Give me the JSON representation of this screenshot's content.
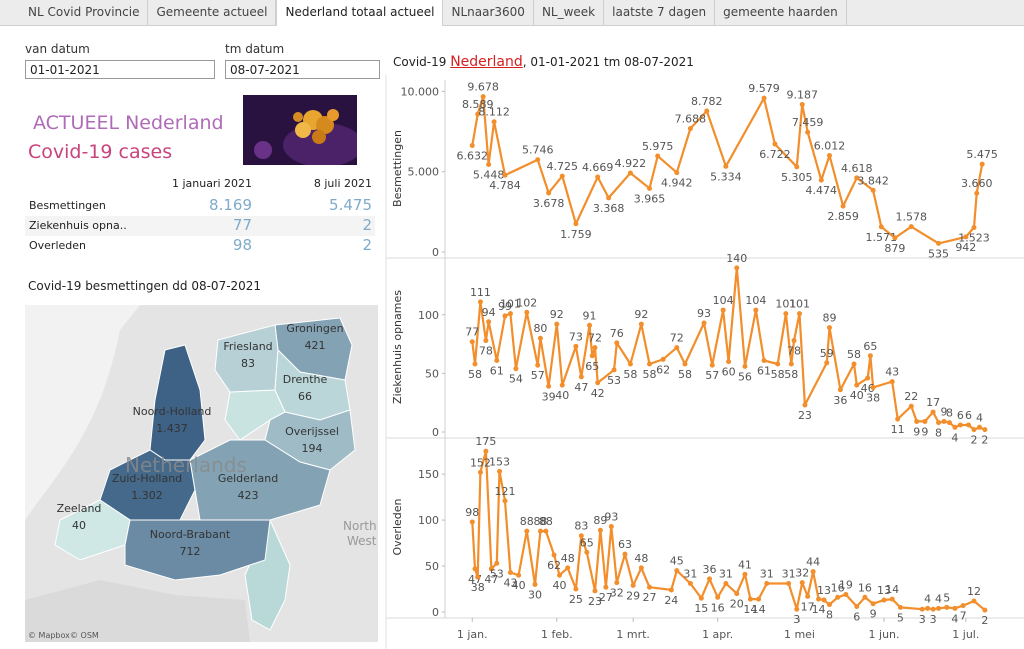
{
  "tabs": [
    "NL Covid Provincie",
    "Gemeente actueel",
    "Nederland totaal actueel",
    "NLnaar3600",
    "NL_week",
    "laatste 7 dagen",
    "gemeente haarden"
  ],
  "active_tab": "Nederland totaal actueel",
  "filters": [
    {
      "label": "van datum",
      "value": "01-01-2021"
    },
    {
      "label": "tm datum",
      "value": "08-07-2021"
    }
  ],
  "headline": [
    "ACTUEEL Nederland",
    "Covid-19 cases"
  ],
  "summary": {
    "columns": [
      "1 januari 2021",
      "8 juli 2021"
    ],
    "rows": [
      {
        "label": "Besmettingen",
        "values": [
          "8.169",
          "5.475"
        ]
      },
      {
        "label": "Ziekenhuis opna..",
        "values": [
          "77",
          "2"
        ]
      },
      {
        "label": "Overleden",
        "values": [
          "98",
          "2"
        ]
      }
    ]
  },
  "map": {
    "title": "Covid-19 besmettingen dd 08-07-2021",
    "regions": [
      {
        "name": "Groningen",
        "value": 421,
        "value_label": "421"
      },
      {
        "name": "Friesland",
        "value": 83,
        "value_label": "83"
      },
      {
        "name": "Drenthe",
        "value": 66,
        "value_label": "66"
      },
      {
        "name": "Noord-Holland",
        "value": 1437,
        "value_label": "1.437"
      },
      {
        "name": "Overijssel",
        "value": 194,
        "value_label": "194"
      },
      {
        "name": "Zuid-Holland",
        "value": 1302,
        "value_label": "1.302"
      },
      {
        "name": "Gelderland",
        "value": 423,
        "value_label": "423"
      },
      {
        "name": "Zeeland",
        "value": 40,
        "value_label": "40"
      },
      {
        "name": "Noord-Brabant",
        "value": 712,
        "value_label": "712"
      }
    ],
    "background_labels": [
      "Netherlands",
      "North",
      "West"
    ],
    "attribution": [
      "© Mapbox",
      "© OSM"
    ]
  },
  "charts_header": {
    "prefix": "Covid-19 ",
    "link": "Nederland",
    "suffix": ", 01-01-2021 tm 08-07-2021"
  },
  "chart_data": [
    {
      "type": "line",
      "y_label": "Besmettingen",
      "color": "#f28e2b",
      "xlim": [
        -10,
        195
      ],
      "ylim": [
        0,
        10400
      ],
      "yticks": [
        0,
        {
          "value": 5000,
          "label": "5.000"
        },
        {
          "value": 10000,
          "label": "10.000"
        }
      ],
      "x": [
        0,
        2,
        4,
        6,
        8,
        12,
        24,
        28,
        33,
        38,
        46,
        50,
        58,
        65,
        68,
        75,
        80,
        86,
        93,
        107,
        111,
        119,
        121,
        123,
        128,
        131,
        136,
        141,
        147,
        150,
        155,
        161,
        171,
        181,
        184,
        185,
        187
      ],
      "values": [
        6632,
        8589,
        9678,
        5448,
        8112,
        4784,
        5746,
        3678,
        4725,
        1759,
        4669,
        3368,
        4922,
        3965,
        5975,
        4942,
        7688,
        8782,
        5334,
        9579,
        6722,
        5305,
        9187,
        7459,
        4474,
        6012,
        2859,
        4618,
        3842,
        1571,
        879,
        1578,
        535,
        942,
        1523,
        3660,
        5475
      ],
      "value_labels": [
        "6.632",
        "8.589",
        "9.678",
        "5.448",
        "8.112",
        "4.784",
        "5.746",
        "3.678",
        "4.725",
        "1.759",
        "4.669",
        "3.368",
        "4.922",
        "3.965",
        "5.975",
        "4.942",
        "7.688",
        "8.782",
        "5.334",
        "9.579",
        "6.722",
        "5.305",
        "9.187",
        "7.459",
        "4.474",
        "6.012",
        "2.859",
        "4.618",
        "3.842",
        "1.571",
        "879",
        "1.578",
        "535",
        "942",
        "1.523",
        "3.660",
        "5.475"
      ]
    },
    {
      "type": "line",
      "y_label": "Ziekenhuis opnames",
      "color": "#f28e2b",
      "xlim": [
        -10,
        195
      ],
      "ylim": [
        0,
        145
      ],
      "yticks": [
        0,
        50,
        100
      ],
      "x": [
        0,
        1,
        3,
        5,
        6,
        9,
        12,
        14,
        16,
        20,
        24,
        25,
        28,
        31,
        33,
        38,
        40,
        43,
        44,
        45,
        46,
        52,
        53,
        58,
        62,
        65,
        70,
        75,
        78,
        85,
        88,
        92,
        94,
        97,
        100,
        104,
        107,
        112,
        115,
        117,
        118,
        120,
        122,
        130,
        131,
        135,
        140,
        141,
        145,
        146,
        147,
        154,
        156,
        161,
        163,
        166,
        169,
        171,
        173,
        175,
        177,
        179,
        182,
        184,
        186,
        188
      ],
      "values": [
        77,
        58,
        111,
        78,
        94,
        61,
        99,
        101,
        54,
        102,
        57,
        80,
        39,
        92,
        40,
        73,
        47,
        91,
        65,
        72,
        42,
        53,
        76,
        58,
        92,
        58,
        62,
        72,
        58,
        93,
        57,
        104,
        60,
        140,
        56,
        104,
        61,
        58,
        101,
        58,
        78,
        101,
        23,
        59,
        89,
        36,
        58,
        40,
        46,
        65,
        38,
        43,
        11,
        22,
        9,
        9,
        17,
        8,
        9,
        8,
        4,
        6,
        6,
        2,
        4,
        2
      ]
    },
    {
      "type": "line",
      "y_label": "Overleden",
      "color": "#f28e2b",
      "xlim": [
        -10,
        195
      ],
      "ylim": [
        0,
        185
      ],
      "yticks": [
        0,
        50,
        100,
        150
      ],
      "xticks": [
        {
          "value": 0,
          "label": "1 jan."
        },
        {
          "value": 31,
          "label": "1 feb."
        },
        {
          "value": 59,
          "label": "1 mrt."
        },
        {
          "value": 90,
          "label": "1 apr."
        },
        {
          "value": 120,
          "label": "1 mei"
        },
        {
          "value": 151,
          "label": "1 jun."
        },
        {
          "value": 181,
          "label": "1 jul."
        }
      ],
      "x": [
        0,
        1,
        2,
        3,
        5,
        7,
        9,
        10,
        12,
        14,
        17,
        20,
        23,
        25,
        27,
        30,
        32,
        35,
        38,
        40,
        42,
        45,
        47,
        49,
        51,
        53,
        56,
        59,
        62,
        65,
        73,
        75,
        80,
        84,
        87,
        90,
        93,
        97,
        100,
        102,
        105,
        108,
        116,
        119,
        121,
        123,
        125,
        127,
        129,
        131,
        134,
        137,
        141,
        144,
        147,
        151,
        154,
        157,
        165,
        167,
        169,
        171,
        174,
        177,
        180,
        184,
        188
      ],
      "values": [
        98,
        47,
        38,
        152,
        175,
        47,
        53,
        153,
        121,
        43,
        40,
        88,
        30,
        88,
        88,
        62,
        40,
        48,
        25,
        83,
        65,
        23,
        89,
        27,
        93,
        32,
        63,
        29,
        48,
        27,
        24,
        45,
        31,
        15,
        36,
        16,
        31,
        20,
        41,
        14,
        14,
        31,
        31,
        3,
        32,
        17,
        44,
        14,
        13,
        8,
        16,
        19,
        6,
        16,
        9,
        13,
        14,
        5,
        3,
        4,
        3,
        4,
        5,
        4,
        7,
        12,
        2
      ]
    }
  ]
}
